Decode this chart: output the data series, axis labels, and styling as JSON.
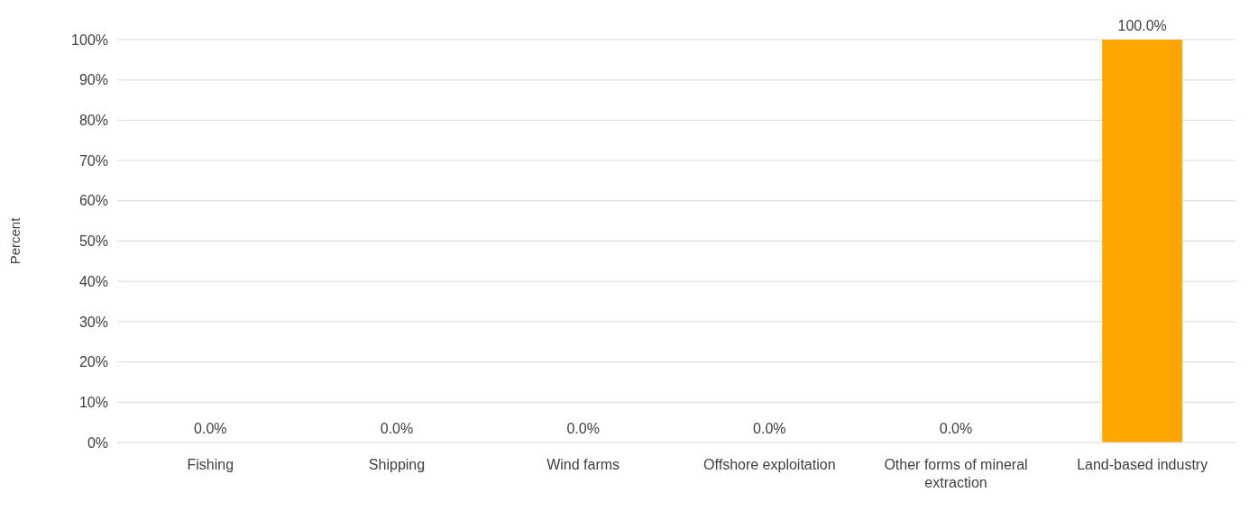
{
  "chart_data": {
    "type": "bar",
    "ylabel": "Percent",
    "categories": [
      "Fishing",
      "Shipping",
      "Wind farms",
      "Offshore exploitation",
      "Other forms of mineral extraction",
      "Land-based industry"
    ],
    "values": [
      0,
      0,
      0,
      0,
      0,
      100
    ],
    "value_labels": [
      "0.0%",
      "0.0%",
      "0.0%",
      "0.0%",
      "0.0%",
      "100.0%"
    ],
    "color": "#ffa500",
    "ylim": [
      0,
      100
    ],
    "yticks": [
      {
        "value": 0,
        "label": "0%"
      },
      {
        "value": 10,
        "label": "10%"
      },
      {
        "value": 20,
        "label": "20%"
      },
      {
        "value": 30,
        "label": "30%"
      },
      {
        "value": 40,
        "label": "40%"
      },
      {
        "value": 50,
        "label": "50%"
      },
      {
        "value": 60,
        "label": "60%"
      },
      {
        "value": 70,
        "label": "70%"
      },
      {
        "value": 80,
        "label": "80%"
      },
      {
        "value": 90,
        "label": "90%"
      },
      {
        "value": 100,
        "label": "100%"
      }
    ],
    "grid": "y"
  }
}
